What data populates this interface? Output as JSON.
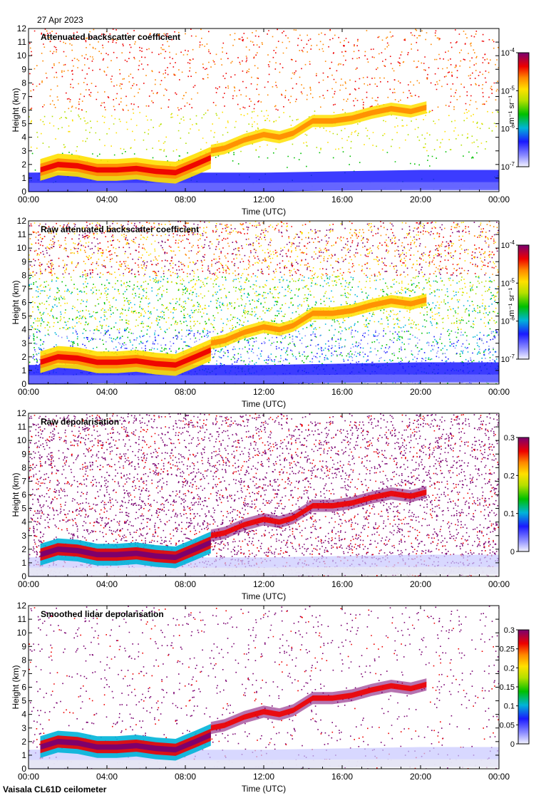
{
  "header": {
    "date": "27 Apr 2023"
  },
  "footer": {
    "instrument": "Vaisala CL61D ceilometer"
  },
  "chart_data": [
    {
      "type": "heatmap",
      "title": "Attenuated backscatter coefficient",
      "xlabel": "Time (UTC)",
      "ylabel": "Height (km)",
      "xlim": [
        "00:00",
        "24:00"
      ],
      "ylim": [
        0,
        12
      ],
      "x_ticks": [
        "00:00",
        "04:00",
        "08:00",
        "12:00",
        "16:00",
        "20:00",
        "00:00"
      ],
      "y_ticks": [
        0,
        1,
        2,
        3,
        4,
        5,
        6,
        7,
        8,
        9,
        10,
        11,
        12
      ],
      "colorbar": {
        "scale": "log",
        "range": [
          1e-07,
          0.0001
        ],
        "unit": "m⁻¹ sr⁻¹",
        "ticks": [
          {
            "base": "10",
            "exp": "-7"
          },
          {
            "base": "10",
            "exp": "-6"
          },
          {
            "base": "10",
            "exp": "-5"
          },
          {
            "base": "10",
            "exp": "-4"
          }
        ]
      },
      "features": {
        "noise": "sparse",
        "boundary_layer_top_km": [
          2.4,
          2.6,
          2.5,
          2.2,
          2.0,
          2.1,
          2.4,
          2.8,
          3.1,
          3.4
        ],
        "cloud_layer_km": [
          4.3,
          4.8,
          5.2,
          5.6,
          6.0,
          6.2
        ]
      }
    },
    {
      "type": "heatmap",
      "title": "Raw attenuated backscatter coefficient",
      "xlabel": "Time (UTC)",
      "ylabel": "Height (km)",
      "xlim": [
        "00:00",
        "24:00"
      ],
      "ylim": [
        0,
        12
      ],
      "x_ticks": [
        "00:00",
        "04:00",
        "08:00",
        "12:00",
        "16:00",
        "20:00",
        "00:00"
      ],
      "y_ticks": [
        0,
        1,
        2,
        3,
        4,
        5,
        6,
        7,
        8,
        9,
        10,
        11,
        12
      ],
      "colorbar": {
        "scale": "log",
        "range": [
          1e-07,
          0.0001
        ],
        "unit": "m⁻¹ sr⁻¹",
        "ticks": [
          {
            "base": "10",
            "exp": "-7"
          },
          {
            "base": "10",
            "exp": "-6"
          },
          {
            "base": "10",
            "exp": "-5"
          },
          {
            "base": "10",
            "exp": "-4"
          }
        ]
      },
      "features": {
        "noise": "dense"
      }
    },
    {
      "type": "heatmap",
      "title": "Raw depolarisation",
      "xlabel": "Time (UTC)",
      "ylabel": "Height (km)",
      "xlim": [
        "00:00",
        "24:00"
      ],
      "ylim": [
        0,
        12
      ],
      "x_ticks": [
        "00:00",
        "04:00",
        "08:00",
        "12:00",
        "16:00",
        "20:00",
        "00:00"
      ],
      "y_ticks": [
        0,
        1,
        2,
        3,
        4,
        5,
        6,
        7,
        8,
        9,
        10,
        11,
        12
      ],
      "colorbar": {
        "scale": "linear",
        "range": [
          0,
          0.3
        ],
        "unit": "",
        "ticks": [
          "0",
          "0.1",
          "0.2",
          "0.3"
        ]
      },
      "features": {
        "noise": "depol-dense"
      }
    },
    {
      "type": "heatmap",
      "title": "Smoothed lidar depolarisation",
      "xlabel": "Time (UTC)",
      "ylabel": "Height (km)",
      "xlim": [
        "00:00",
        "24:00"
      ],
      "ylim": [
        0,
        12
      ],
      "x_ticks": [
        "00:00",
        "04:00",
        "08:00",
        "12:00",
        "16:00",
        "20:00",
        "00:00"
      ],
      "y_ticks": [
        0,
        1,
        2,
        3,
        4,
        5,
        6,
        7,
        8,
        9,
        10,
        11,
        12
      ],
      "colorbar": {
        "scale": "linear",
        "range": [
          0,
          0.3
        ],
        "unit": "",
        "ticks": [
          "0",
          "0.05",
          "0.1",
          "0.15",
          "0.2",
          "0.25",
          "0.3"
        ]
      },
      "features": {
        "noise": "depol-sparse"
      }
    }
  ]
}
